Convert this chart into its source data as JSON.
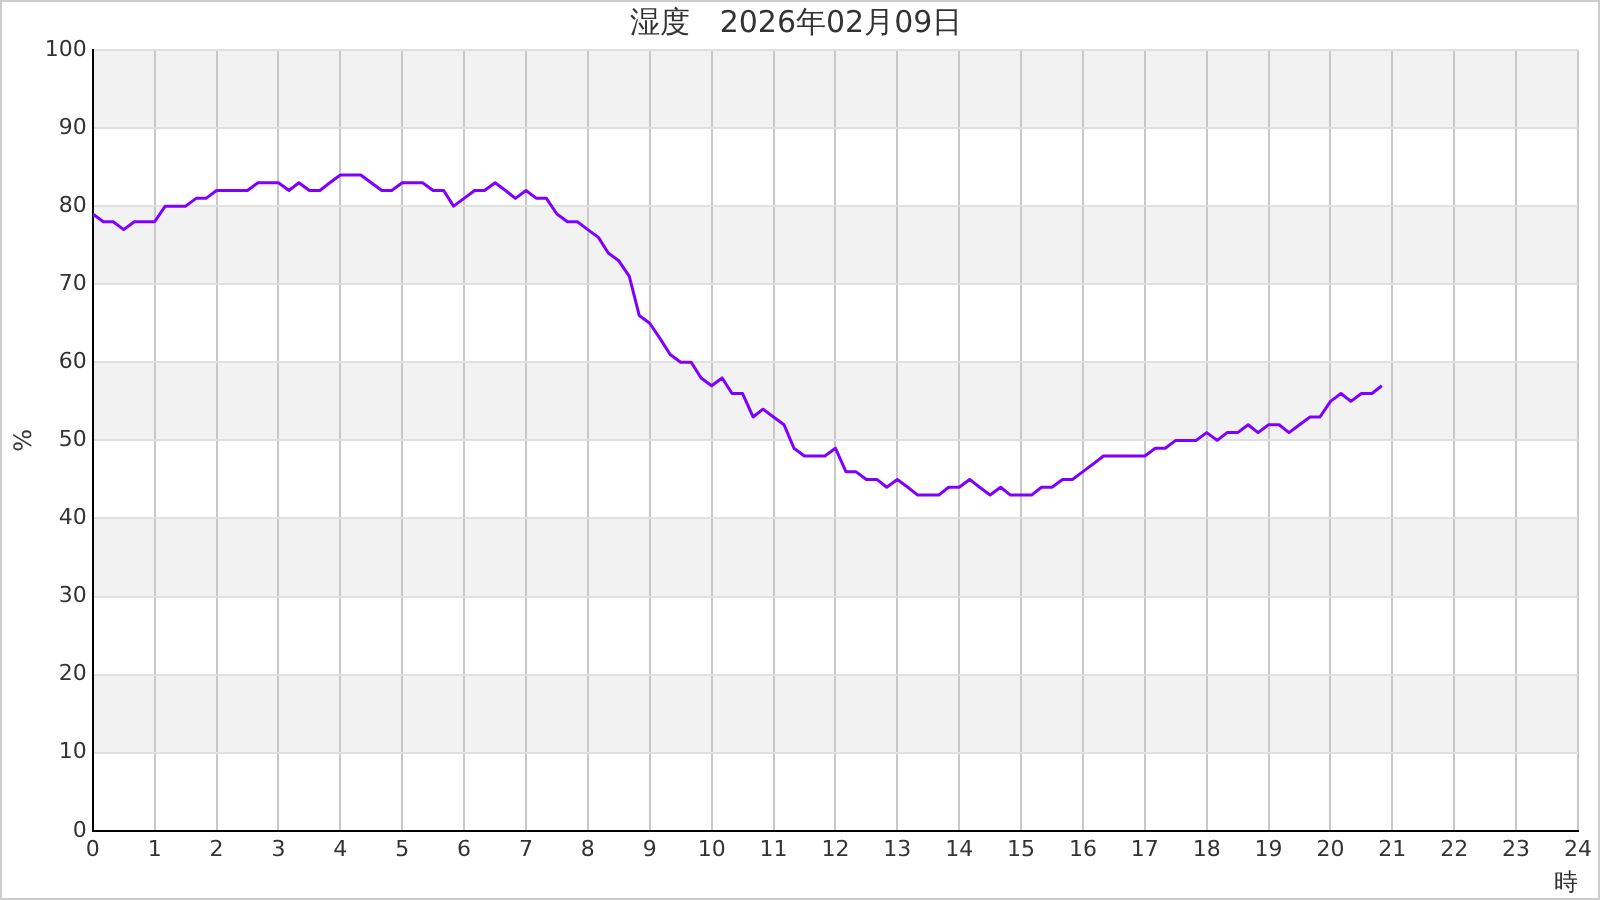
{
  "chart_data": {
    "type": "line",
    "title": "湿度　2026年02月09日",
    "xlabel": "時",
    "ylabel": "%",
    "x": [
      0,
      0.17,
      0.33,
      0.5,
      0.67,
      0.83,
      1,
      1.17,
      1.33,
      1.5,
      1.67,
      1.83,
      2,
      2.17,
      2.33,
      2.5,
      2.67,
      2.83,
      3,
      3.17,
      3.33,
      3.5,
      3.67,
      3.83,
      4,
      4.17,
      4.33,
      4.5,
      4.67,
      4.83,
      5,
      5.17,
      5.33,
      5.5,
      5.67,
      5.83,
      6,
      6.17,
      6.33,
      6.5,
      6.67,
      6.83,
      7,
      7.17,
      7.33,
      7.5,
      7.67,
      7.83,
      8,
      8.17,
      8.33,
      8.5,
      8.67,
      8.83,
      9,
      9.17,
      9.33,
      9.5,
      9.67,
      9.83,
      10,
      10.17,
      10.33,
      10.5,
      10.67,
      10.83,
      11,
      11.17,
      11.33,
      11.5,
      11.67,
      11.83,
      12,
      12.17,
      12.33,
      12.5,
      12.67,
      12.83,
      13,
      13.17,
      13.33,
      13.5,
      13.67,
      13.83,
      14,
      14.17,
      14.33,
      14.5,
      14.67,
      14.83,
      15,
      15.17,
      15.33,
      15.5,
      15.67,
      15.83,
      16,
      16.17,
      16.33,
      16.5,
      16.67,
      16.83,
      17,
      17.17,
      17.33,
      17.5,
      17.67,
      17.83,
      18,
      18.17,
      18.33,
      18.5,
      18.67,
      18.83,
      19,
      19.17,
      19.33,
      19.5,
      19.67,
      19.83,
      20,
      20.17,
      20.33,
      20.5,
      20.67,
      20.83
    ],
    "series": [
      {
        "color": "#8000ff",
        "values": [
          79,
          78,
          78,
          77,
          78,
          78,
          78,
          80,
          80,
          80,
          81,
          81,
          82,
          82,
          82,
          82,
          83,
          83,
          83,
          82,
          83,
          82,
          82,
          83,
          84,
          84,
          84,
          83,
          82,
          82,
          83,
          83,
          83,
          82,
          82,
          80,
          81,
          82,
          82,
          83,
          82,
          81,
          82,
          81,
          81,
          79,
          78,
          78,
          77,
          76,
          74,
          73,
          71,
          66,
          65,
          63,
          61,
          60,
          60,
          58,
          57,
          58,
          56,
          56,
          53,
          54,
          53,
          52,
          49,
          48,
          48,
          48,
          49,
          46,
          46,
          45,
          45,
          44,
          45,
          44,
          43,
          43,
          43,
          44,
          44,
          45,
          44,
          43,
          44,
          43,
          43,
          43,
          44,
          44,
          45,
          45,
          46,
          47,
          48,
          48,
          48,
          48,
          48,
          49,
          49,
          50,
          50,
          50,
          51,
          50,
          51,
          51,
          52,
          51,
          52,
          52,
          51,
          52,
          53,
          53,
          55,
          56,
          55,
          56,
          56,
          57
        ]
      }
    ],
    "xlim": [
      0,
      24
    ],
    "xticks": [
      0,
      1,
      2,
      3,
      4,
      5,
      6,
      7,
      8,
      9,
      10,
      11,
      12,
      13,
      14,
      15,
      16,
      17,
      18,
      19,
      20,
      21,
      22,
      23,
      24
    ],
    "ylim": [
      0,
      100
    ],
    "yticks": [
      0,
      10,
      20,
      30,
      40,
      50,
      60,
      70,
      80,
      90,
      100
    ],
    "grid": true,
    "legend": false,
    "marker": "none",
    "line_style": "solid"
  }
}
